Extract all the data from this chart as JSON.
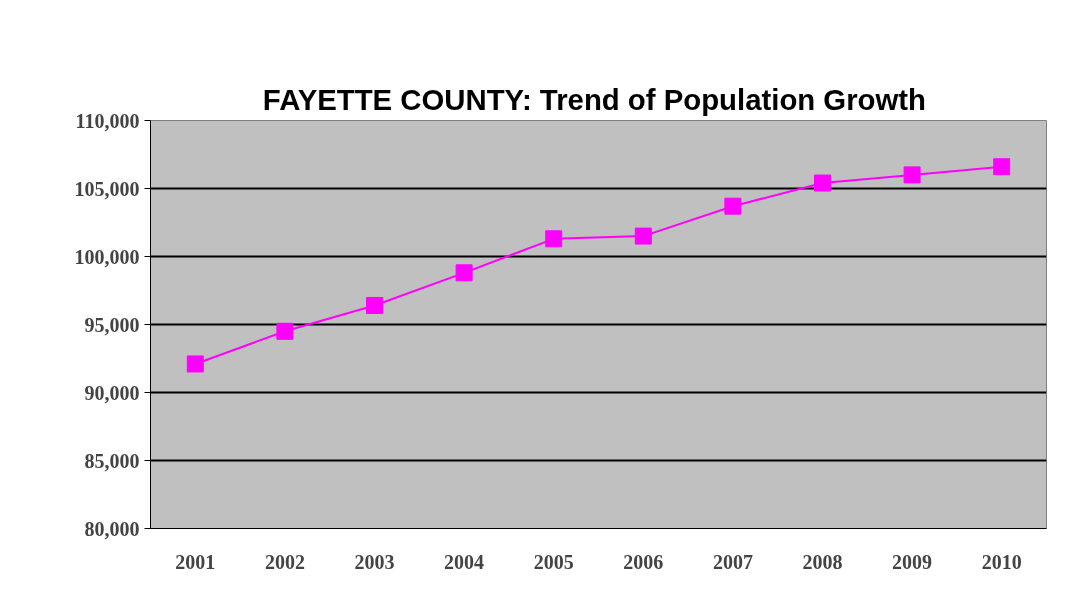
{
  "chart_data": {
    "type": "line",
    "title": "FAYETTE COUNTY:  Trend of Population Growth",
    "categories": [
      "2001",
      "2002",
      "2003",
      "2004",
      "2005",
      "2006",
      "2007",
      "2008",
      "2009",
      "2010"
    ],
    "series": [
      {
        "color": "#ff00ff",
        "values": [
          92100,
          94500,
          96400,
          98800,
          101300,
          101500,
          103700,
          105400,
          106000,
          106600
        ]
      }
    ],
    "ylim": [
      80000,
      110000
    ],
    "yticks": [
      {
        "value": 80000,
        "label": "80,000"
      },
      {
        "value": 85000,
        "label": "85,000"
      },
      {
        "value": 90000,
        "label": "90,000"
      },
      {
        "value": 95000,
        "label": "95,000"
      },
      {
        "value": 100000,
        "label": "100,000"
      },
      {
        "value": 105000,
        "label": "105,000"
      },
      {
        "value": 110000,
        "label": "110,000"
      }
    ],
    "grid": "y",
    "marker": "square",
    "line_style": "solid"
  }
}
